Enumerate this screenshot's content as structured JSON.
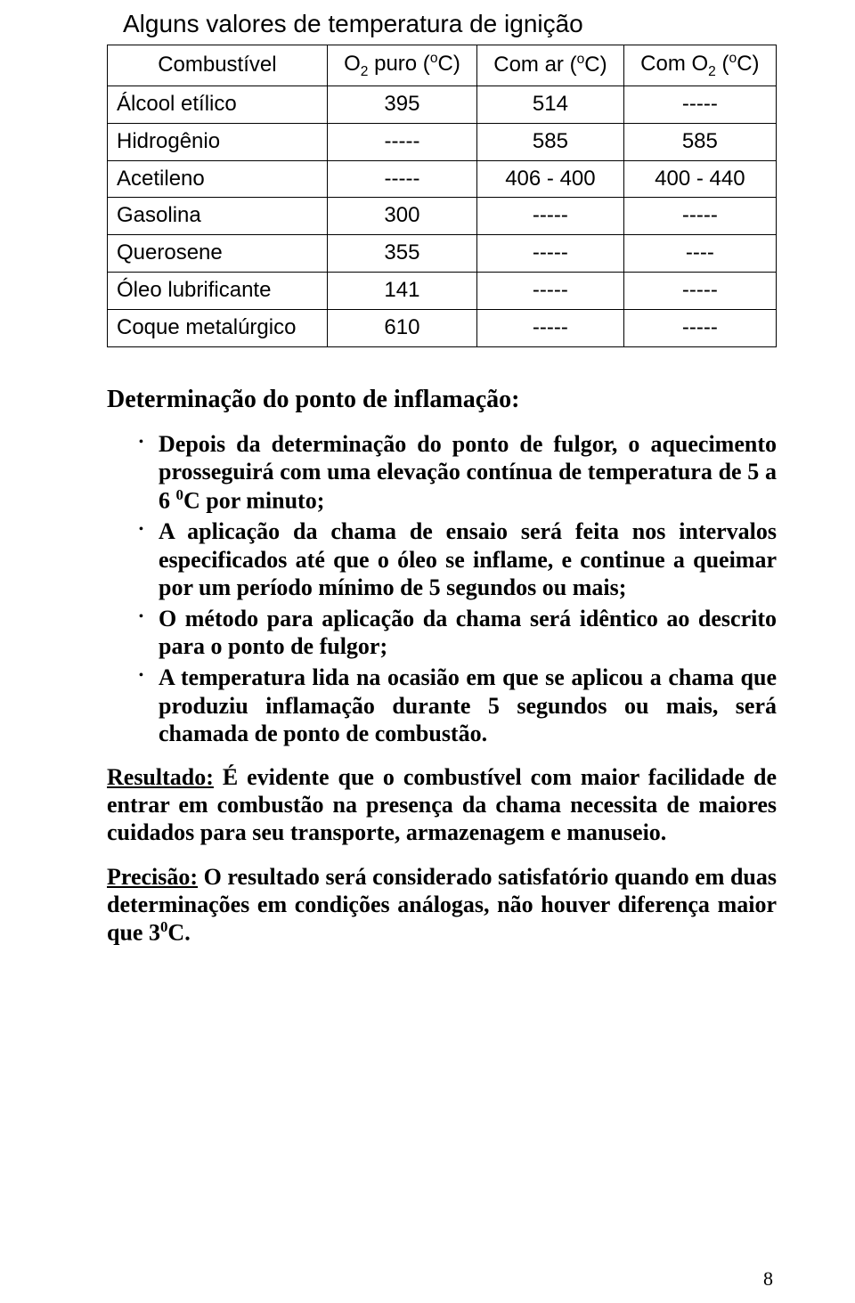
{
  "title": "Alguns valores de temperatura de ignição",
  "table": {
    "columns": [
      {
        "label_prefix": "Combustível",
        "align": "left"
      },
      {
        "label_prefix": "O",
        "label_sub": "2",
        "label_mid": " puro (",
        "label_sup": "o",
        "label_suffix": "C)",
        "align": "center"
      },
      {
        "label_prefix": "Com ar  (",
        "label_sup": "o",
        "label_suffix": "C)",
        "align": "center"
      },
      {
        "label_prefix": "Com O",
        "label_sub": "2",
        "label_mid": " (",
        "label_sup": "o",
        "label_suffix": "C)",
        "align": "center"
      }
    ],
    "rows": [
      {
        "label": "Álcool etílico",
        "c1": "395",
        "c2": "514",
        "c3": "-----"
      },
      {
        "label": "Hidrogênio",
        "c1": "-----",
        "c2": "585",
        "c3": "585"
      },
      {
        "label": "Acetileno",
        "c1": "-----",
        "c2": "406 - 400",
        "c3": "400 - 440"
      },
      {
        "label": "Gasolina",
        "c1": "300",
        "c2": "-----",
        "c3": "-----"
      },
      {
        "label": "Querosene",
        "c1": "355",
        "c2": "-----",
        "c3": "----"
      },
      {
        "label": "Óleo lubrificante",
        "c1": "141",
        "c2": "-----",
        "c3": "-----"
      },
      {
        "label": "Coque metalúrgico",
        "c1": "610",
        "c2": "-----",
        "c3": "-----"
      }
    ],
    "border_color": "#000000",
    "background_color": "#ffffff",
    "header_fontsize": 24,
    "cell_fontsize": 24
  },
  "section_heading": "Determinação do ponto de inflamação:",
  "bullets": [
    {
      "pre": "Depois da determinação do ponto de fulgor, o aquecimento prosseguirá com uma elevação contínua de temperatura de 5 a 6 ",
      "sup": "0",
      "post": "C por minuto;"
    },
    {
      "pre": "A aplicação da chama de ensaio será feita nos intervalos especificados até que o óleo se inflame, e continue a queimar por um período mínimo de 5 segundos ou mais;",
      "sup": "",
      "post": ""
    },
    {
      "pre": "O método para aplicação da chama será idêntico ao descrito para  o ponto de fulgor;",
      "sup": "",
      "post": ""
    },
    {
      "pre": "A temperatura lida na ocasião em que se aplicou a chama que produziu inflamação durante 5 segundos ou mais, será chamada de ponto de combustão.",
      "sup": "",
      "post": ""
    }
  ],
  "paragraphs": [
    {
      "lead": "Resultado:",
      "body": " É evidente que o combustível com maior facilidade de entrar em combustão na presença da chama necessita de maiores cuidados para seu transporte, armazenagem  e manuseio.",
      "sup": "",
      "post": ""
    },
    {
      "lead": "Precisão:",
      "body": " O resultado será considerado satisfatório quando em duas determinações em condições análogas, não houver diferença maior que 3",
      "sup": "0",
      "post": "C."
    }
  ],
  "page_number": "8",
  "colors": {
    "text": "#000000",
    "background": "#ffffff"
  },
  "fonts": {
    "body": "Times New Roman",
    "table": "Arial"
  }
}
